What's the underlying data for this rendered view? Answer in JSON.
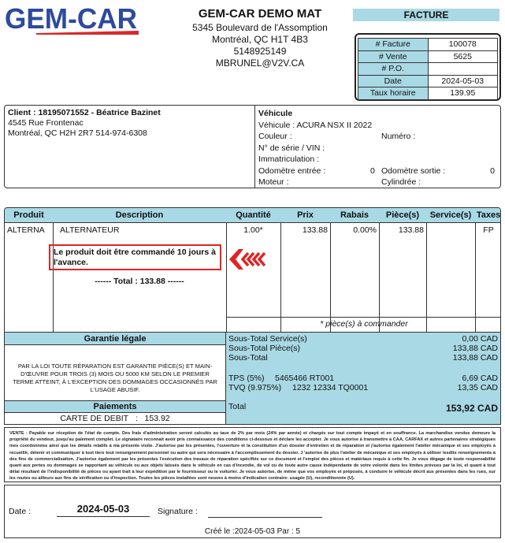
{
  "logo": {
    "text": "GEM-CAR",
    "colors": {
      "text": "#2e4a9e",
      "swoosh": "#d62b2b"
    }
  },
  "company": {
    "name": "GEM-CAR DEMO MAT",
    "address": "5345 Boulevard de l'Assomption",
    "city": "Montréal, QC H1T 4B3",
    "phone": "5148925149",
    "email": "MBRUNEL@V2V.CA"
  },
  "doc_title": "FACTURE",
  "info": [
    {
      "label": "# Facture",
      "value": "100078"
    },
    {
      "label": "# Vente",
      "value": "5625"
    },
    {
      "label": "# P.O.",
      "value": ""
    },
    {
      "label": "Date",
      "value": "2024-05-03"
    },
    {
      "label": "Taux horaire",
      "value": "139.95"
    }
  ],
  "client": {
    "header": "Client : 18195071552 - Béatrice Bazinet",
    "address": "4545 Rue Frontenac",
    "city_phone": "Montréal, QC H2H 2R7  514-974-6308"
  },
  "vehicle": {
    "header": "Véhicule",
    "vehicule": "Véhicule : ACURA NSX II 2022",
    "couleur": "Couleur :",
    "numero": "Numéro :",
    "serie": "N° de série / VIN :",
    "immat": "Immatriculation :",
    "odo_in_label": "Odomètre entrée :",
    "odo_in": "0",
    "odo_out_label": "Odomètre sortie :",
    "odo_out": "0",
    "moteur": "Moteur :",
    "cylindree": "Cylindrée :"
  },
  "items": {
    "headers": [
      "Produit",
      "Description",
      "Quantité",
      "Prix",
      "Rabais",
      "Pièce(s)",
      "Service(s)",
      "Taxes"
    ],
    "rows": [
      {
        "produit": "ALTERNA",
        "description": "ALTERNATEUR",
        "quantite": "1.00*",
        "prix": "133.88",
        "rabais": "0.00%",
        "pieces": "133.88",
        "services": "",
        "taxes": "FP"
      }
    ],
    "note": "Le produit doit être commandé 10 jours à l'avance.",
    "total_line": "------ Total : 133.88 ------",
    "footnote": "* pièce(s) à commander"
  },
  "warranty": {
    "header": "Garantie légale",
    "text": "PAR LA LOI TOUTE RÉPARATION EST GARANTIE PIÈCE(S) ET MAIN-D'ŒUVRE POUR TROIS (3) MOIS OU 5000 KM SELON LE PREMIER TERME ATTEINT, À L'EXCEPTION DES DOMMAGES OCCASIONNÉS PAR L'USAGE ABUSIF."
  },
  "payments": {
    "header": "Paiements",
    "method": "CARTE DE DEBIT",
    "sep": ":",
    "amount": "153.92"
  },
  "totals": {
    "sous_total_services_label": "Sous-Total Service(s)",
    "sous_total_services": "0,00 CAD",
    "sous_total_pieces_label": "Sous-Total Pièce(s)",
    "sous_total_pieces": "133,88 CAD",
    "sous_total_label": "Sous-Total",
    "sous_total": "133,88 CAD",
    "tps_label": "TPS (5%)",
    "tps_no": "5465466 RT001",
    "tps": "6,69 CAD",
    "tvq_label": "TVQ (9.975%)",
    "tvq_no": "1232 12334 TQ0001",
    "tvq": "13,35 CAD",
    "total_label": "Total",
    "total": "153,92 CAD"
  },
  "terms": "VENTE : Payable sur réception de l'état de compte. Des frais d'administration seront calculés au taux de 2% par mois (24% par année) et chargés sur tout compte impayé et en souffrance. La marchandise vendue demeure la propriété du vendeur, jusqu'au paiement complet. Le signataire reconnait avoir pris connaissance des conditions ci-dessous et déclare les accepter. Je vous autorise à transmettre à CAA, CARFAX et autres partenaires stratégiques mes coordonnées ainsi que les détails relatifs à ma présente visite. J'autorise par les présentes, l'ouverture et la constitution d'un dossier d'entretien et de réparation et j'autorise également l'atelier mécanique et ses employés à recueillir, détenir et communiquer à tout tiers tout renseignement personnel ou autre qui sera nécessaire à l'accomplissement du dossier. J 'autorise de plus l'atelier de mécanique et ses employés à utiliser lesdits renseignements à des fins de commercialisation. J'autorise également par les présentes l'exécution des travaux de réparation spécifiés sur ce document et l'emploi des pièces et matériaux requis à cette fin. Je vous dégage de toute responsabilité quant aux pertes ou dommages se rapportant au véhicule ou aux objets laissés dans le véhicule en cas d'incendie, de vol ou de toute autre cause indépendante de votre volonté dans les limites prévues par la loi, et quant à tout délai résultant de l'indisponibilité de pièces ou ayant trait à leur expédition par le fournisseur ou le voiturier. Je vous autorise, de même que vos employés et préposés, à conduire le véhicule décrit aux présentes dans les rues, sur les routes ou ailleurs aux fins de vérification ou d'inspection. Toutes les pièces installées sont neuves à moins d'indication contraire: usagée (U), reconditionnée (U).",
  "signature": {
    "date_label": "Date :",
    "date": "2024-05-03",
    "signature_label": "Signature :",
    "created": "Créé le :2024-05-03   Par : 5"
  }
}
